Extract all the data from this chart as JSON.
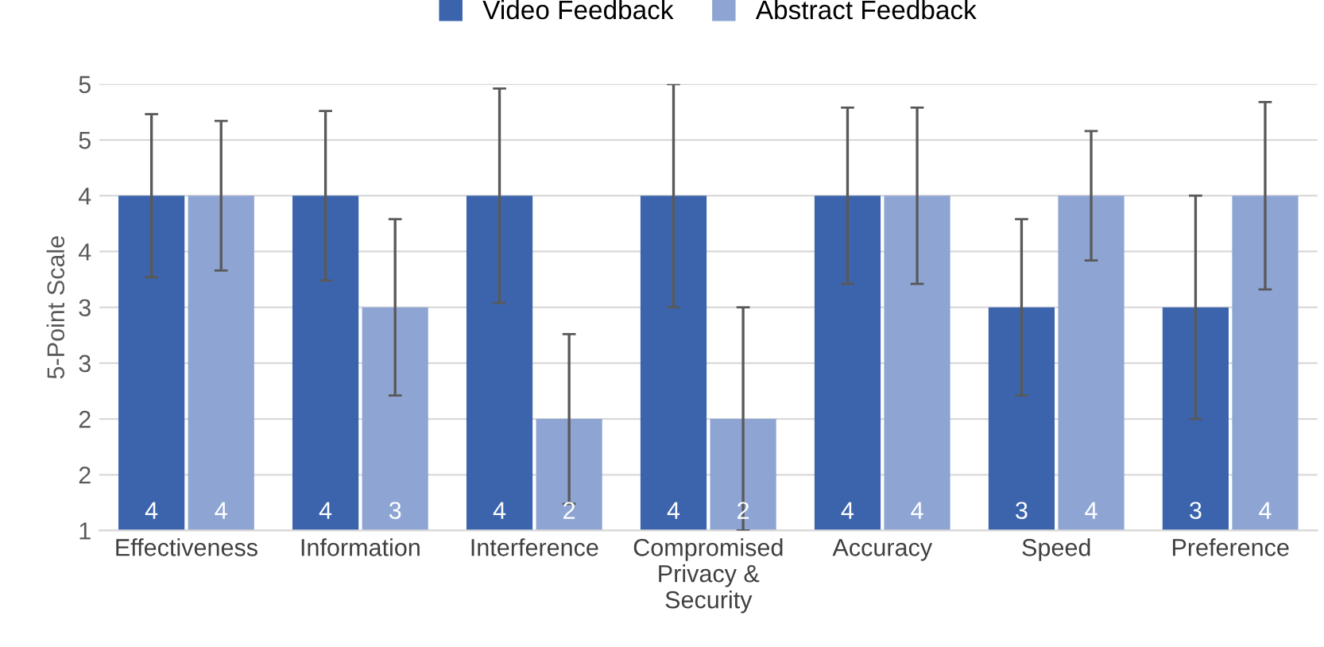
{
  "chart_data": {
    "type": "bar",
    "ylabel": "5-Point Scale",
    "categories": [
      "Effectiveness",
      "Information",
      "Interference",
      "Compromised\nPrivacy &\nSecurity",
      "Accuracy",
      "Speed",
      "Preference"
    ],
    "series": [
      {
        "name": "Video Feedback",
        "color": "#3c64ad",
        "values": [
          4,
          4,
          4,
          4,
          4,
          3,
          3
        ],
        "errors": [
          0.73,
          0.76,
          0.96,
          1.0,
          0.79,
          0.79,
          1.0
        ]
      },
      {
        "name": "Abstract Feedback",
        "color": "#8ea5d4",
        "values": [
          4,
          3,
          2,
          2,
          4,
          4,
          4
        ],
        "errors": [
          0.67,
          0.79,
          0.76,
          1.0,
          0.79,
          0.58,
          0.84
        ]
      }
    ],
    "ylim": [
      1,
      5
    ],
    "yticks": [
      1,
      {
        "value": 1.5,
        "label": "2"
      },
      2,
      {
        "value": 2.5,
        "label": "3"
      },
      3,
      {
        "value": 3.5,
        "label": "4"
      },
      4,
      {
        "value": 4.5,
        "label": "5"
      },
      5
    ],
    "data_labels": true,
    "grid": "y",
    "legend": "top"
  }
}
